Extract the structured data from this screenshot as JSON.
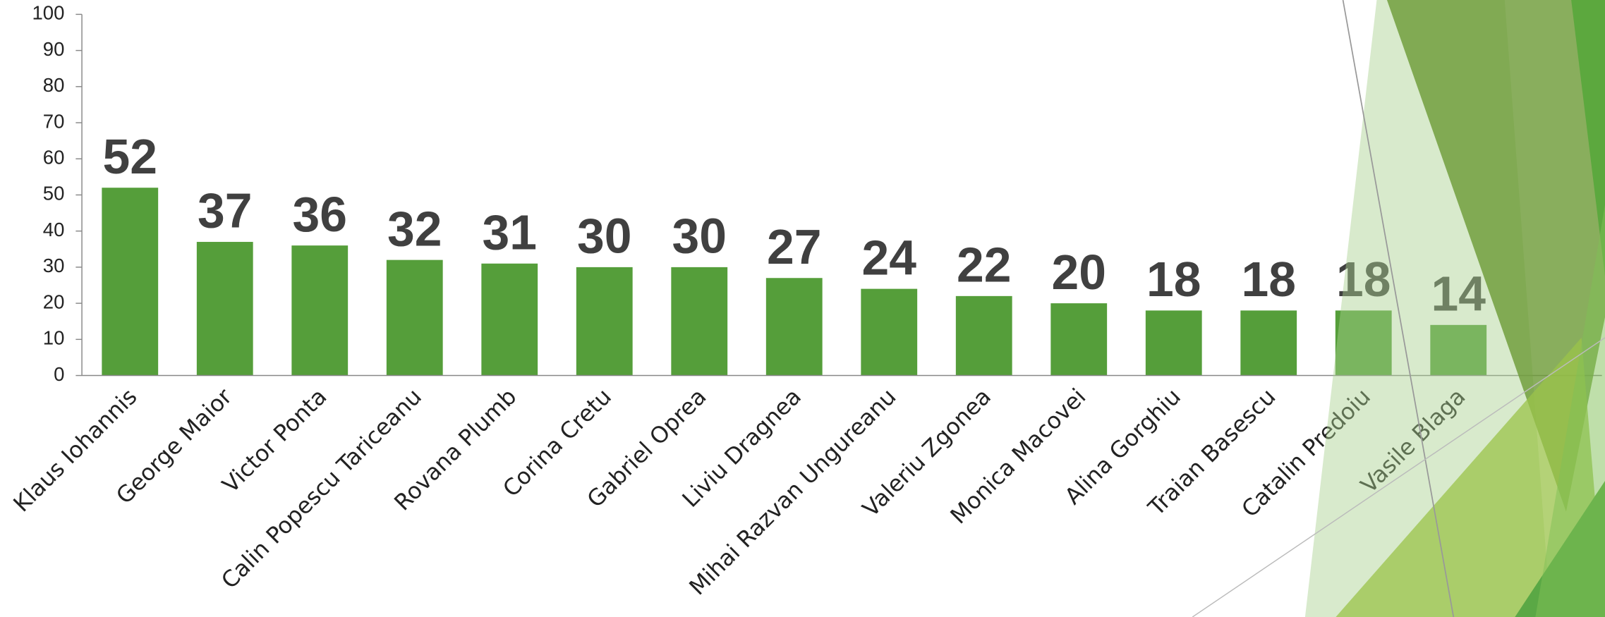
{
  "chart_data": {
    "type": "bar",
    "categories": [
      "Klaus Iohannis",
      "George Maior",
      "Victor Ponta",
      "Calin Popescu Tariceanu",
      "Rovana Plumb",
      "Corina Cretu",
      "Gabriel Oprea",
      "Liviu Dragnea",
      "Mihai Razvan Ungureanu",
      "Valeriu Zgonea",
      "Monica Macovei",
      "Alina Gorghiu",
      "Traian Basescu",
      "Catalin Predoiu",
      "Vasile Blaga"
    ],
    "values": [
      52,
      37,
      36,
      32,
      31,
      30,
      30,
      27,
      24,
      22,
      20,
      18,
      18,
      18,
      14
    ],
    "color": "#559e3a",
    "ylim": [
      0,
      100
    ],
    "yticks": [
      0,
      10,
      20,
      30,
      40,
      50,
      60,
      70,
      80,
      90,
      100
    ]
  }
}
